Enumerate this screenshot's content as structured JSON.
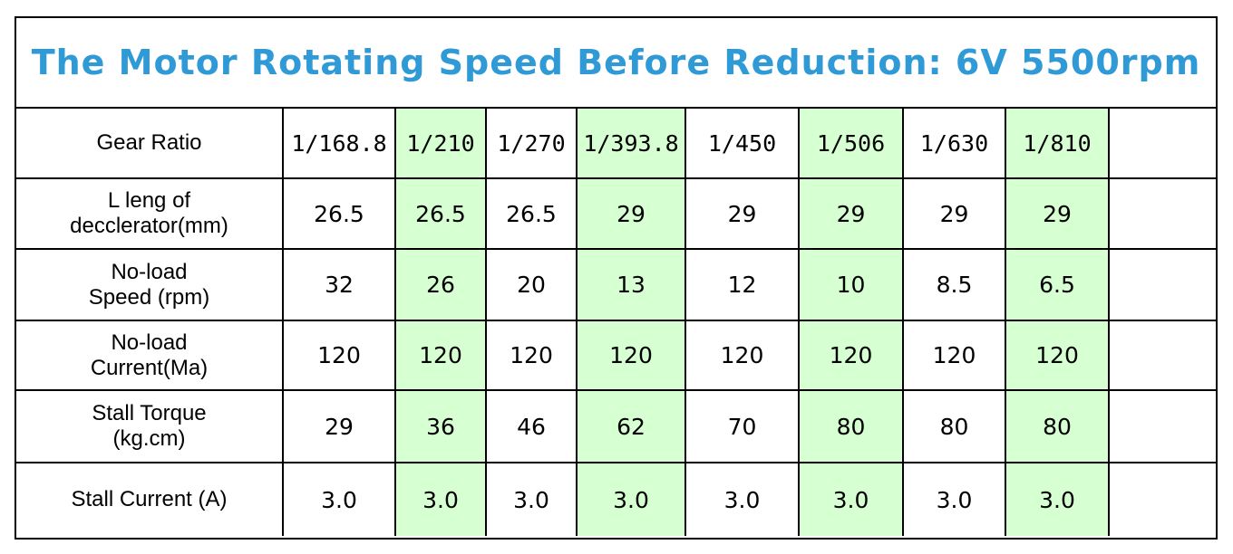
{
  "title": "The Motor Rotating Speed Before Reduction: 6V 5500rpm",
  "colors": {
    "title": "#2f9ad6",
    "highlight_columns": "#d6ffd2",
    "border": "#000000"
  },
  "highlighted_columns": [
    2,
    4,
    6,
    8
  ],
  "rows": [
    {
      "label": "Gear Ratio",
      "values": [
        "1/168.8",
        "1/210",
        "1/270",
        "1/393.8",
        "1/450",
        "1/506",
        "1/630",
        "1/810",
        ""
      ]
    },
    {
      "label": "L leng of\ndecclerator(mm)",
      "values": [
        "26.5",
        "26.5",
        "26.5",
        "29",
        "29",
        "29",
        "29",
        "29",
        ""
      ]
    },
    {
      "label": "No-load\nSpeed (rpm)",
      "values": [
        "32",
        "26",
        "20",
        "13",
        "12",
        "10",
        "8.5",
        "6.5",
        ""
      ]
    },
    {
      "label": "No-load\nCurrent(Ma)",
      "values": [
        "120",
        "120",
        "120",
        "120",
        "120",
        "120",
        "120",
        "120",
        ""
      ]
    },
    {
      "label": "Stall Torque\n(kg.cm)",
      "values": [
        "29",
        "36",
        "46",
        "62",
        "70",
        "80",
        "80",
        "80",
        ""
      ]
    },
    {
      "label": "Stall Current (A)",
      "values": [
        "3.0",
        "3.0",
        "3.0",
        "3.0",
        "3.0",
        "3.0",
        "3.0",
        "3.0",
        ""
      ]
    }
  ]
}
